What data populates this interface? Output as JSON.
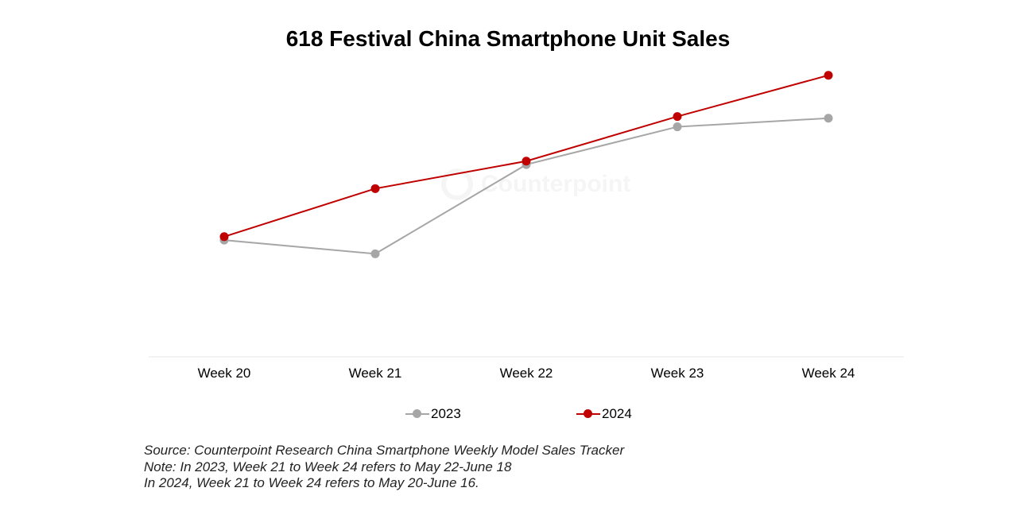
{
  "chart_data": {
    "type": "line",
    "title": "618 Festival China Smartphone Unit Sales",
    "categories": [
      "Week 20",
      "Week 21",
      "Week 22",
      "Week 23",
      "Week 24"
    ],
    "series": [
      {
        "name": "2023",
        "color": "#a6a6a6",
        "values": [
          34,
          30,
          56,
          67,
          69.5
        ]
      },
      {
        "name": "2024",
        "color": "#c00000",
        "values": [
          35,
          49,
          57,
          70,
          82
        ]
      }
    ],
    "ylim": [
      0,
      100
    ],
    "grid": false,
    "y_axis_labels_shown": false,
    "legend_position": "bottom"
  },
  "watermark": {
    "text": "Counterpoint"
  },
  "footnotes": [
    "Source: Counterpoint Research China Smartphone Weekly Model Sales Tracker",
    "Note: In 2023, Week 21 to Week 24 refers to May 22-June 18",
    "In 2024, Week 21 to Week 24 refers to May 20-June 16."
  ]
}
